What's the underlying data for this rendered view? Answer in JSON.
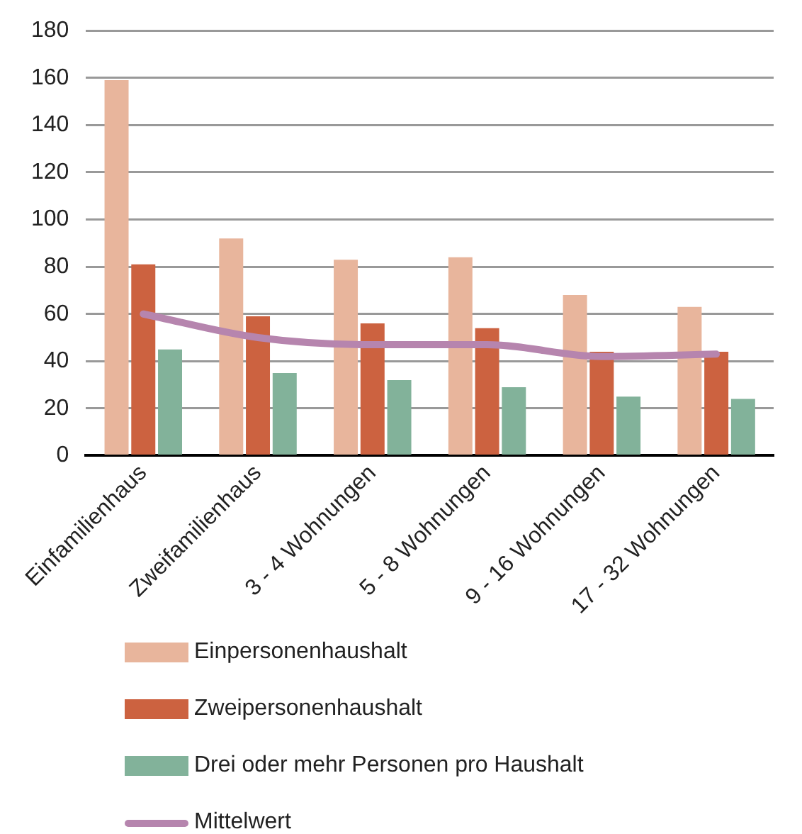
{
  "chart_data": {
    "type": "bar",
    "categories": [
      "Einfamilienhaus",
      "Zweifamilienhaus",
      "3 - 4 Wohnungen",
      "5 - 8 Wohnungen",
      "9 - 16 Wohnungen",
      "17 - 32 Wohnungen"
    ],
    "series": [
      {
        "name": "Einpersonenhaushalt",
        "color": "#e8b59c",
        "values": [
          159,
          92,
          83,
          84,
          68,
          63
        ]
      },
      {
        "name": "Zweipersonenhaushalt",
        "color": "#cc6240",
        "values": [
          81,
          59,
          56,
          54,
          44,
          44
        ]
      },
      {
        "name": "Drei oder mehr Personen pro Haushalt",
        "color": "#82b29a",
        "values": [
          45,
          35,
          32,
          29,
          25,
          24
        ]
      },
      {
        "name": "Mittelwert",
        "type": "line",
        "color": "#b685ae",
        "values": [
          60,
          50,
          47,
          47,
          42,
          43
        ]
      }
    ],
    "ylim": [
      0,
      180
    ],
    "yticks": [
      0,
      20,
      40,
      60,
      80,
      100,
      120,
      140,
      160,
      180
    ],
    "grid": "y",
    "legend": "bottom",
    "marker": "none"
  }
}
